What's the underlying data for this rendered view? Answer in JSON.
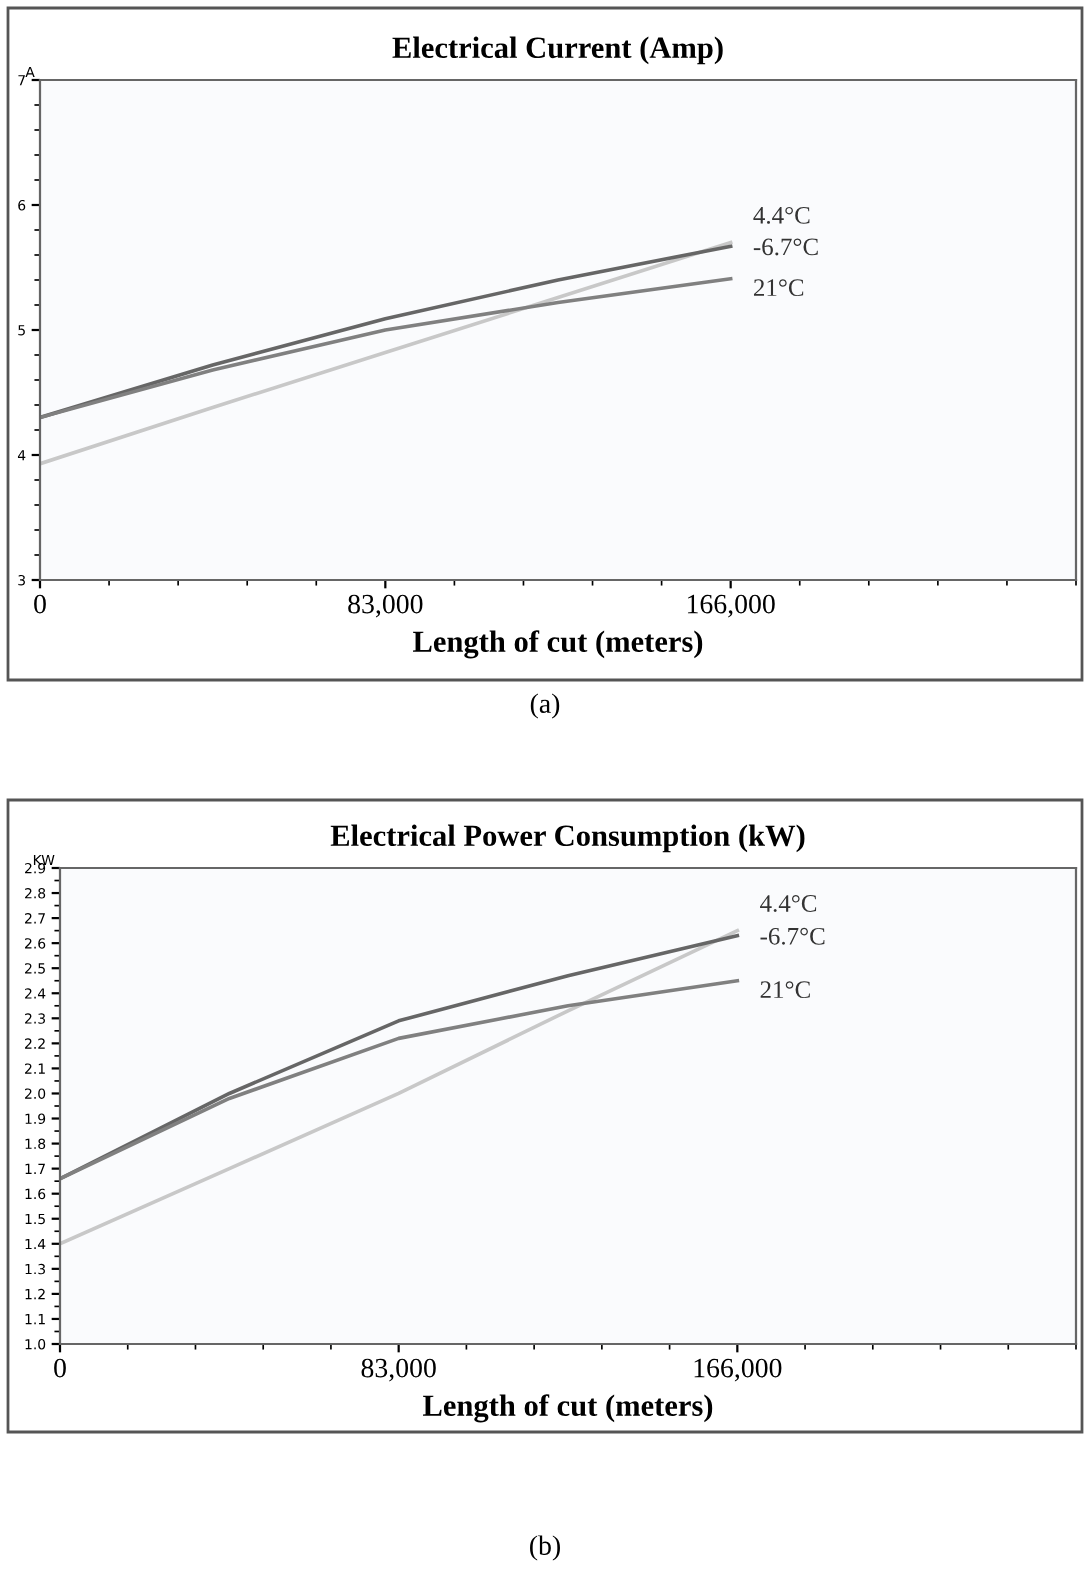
{
  "chart_data": [
    {
      "type": "line",
      "title": "Electrical Current (Amp)",
      "xlabel": "Length of cut (meters)",
      "ylabel": "A",
      "x": [
        0,
        41500,
        83000,
        124500,
        166000
      ],
      "series": [
        {
          "name": "4.4°C",
          "color": "#c8c8c8",
          "values": [
            3.93,
            4.38,
            4.82,
            5.26,
            5.7
          ]
        },
        {
          "name": "-6.7°C",
          "color": "#666666",
          "values": [
            4.3,
            4.72,
            5.09,
            5.4,
            5.67
          ]
        },
        {
          "name": "21°C",
          "color": "#808080",
          "values": [
            4.3,
            4.68,
            5.0,
            5.22,
            5.41
          ]
        }
      ],
      "xlim": [
        0,
        249000
      ],
      "xticks": [
        {
          "value": 0,
          "label": "0"
        },
        {
          "value": 83000,
          "label": "83,000"
        },
        {
          "value": 166000,
          "label": "166,000"
        }
      ],
      "ylim": [
        3,
        7
      ],
      "yticks": [
        3,
        4,
        5,
        6,
        7
      ],
      "grid": false,
      "legend": false,
      "marker": "none",
      "line_style": "solid",
      "annotations": [
        "(a)"
      ]
    },
    {
      "type": "line",
      "title": "Electrical Power Consumption (kW)",
      "xlabel": "Length of cut (meters)",
      "ylabel": "KW",
      "x": [
        0,
        41500,
        83000,
        124500,
        166000
      ],
      "series": [
        {
          "name": "4.4°C",
          "color": "#c8c8c8",
          "values": [
            1.4,
            1.7,
            2.0,
            2.33,
            2.65
          ]
        },
        {
          "name": "-6.7°C",
          "color": "#666666",
          "values": [
            1.66,
            2.0,
            2.29,
            2.47,
            2.63
          ]
        },
        {
          "name": "21°C",
          "color": "#808080",
          "values": [
            1.66,
            1.98,
            2.22,
            2.35,
            2.45
          ]
        }
      ],
      "xlim": [
        0,
        249000
      ],
      "xticks": [
        {
          "value": 0,
          "label": "0"
        },
        {
          "value": 83000,
          "label": "83,000"
        },
        {
          "value": 166000,
          "label": "166,000"
        }
      ],
      "ylim": [
        1.0,
        2.9
      ],
      "yticks": [
        {
          "value": 1.0,
          "label": "1.0"
        },
        1.1,
        1.2,
        1.3,
        1.4,
        1.5,
        1.6,
        1.7,
        1.8,
        1.9,
        {
          "value": 2.0,
          "label": "2.0"
        },
        2.1,
        2.2,
        2.3,
        2.4,
        2.5,
        2.6,
        2.7,
        2.8,
        2.9
      ],
      "grid": false,
      "legend": false,
      "marker": "none",
      "line_style": "solid",
      "annotations": [
        "(b)"
      ]
    }
  ]
}
